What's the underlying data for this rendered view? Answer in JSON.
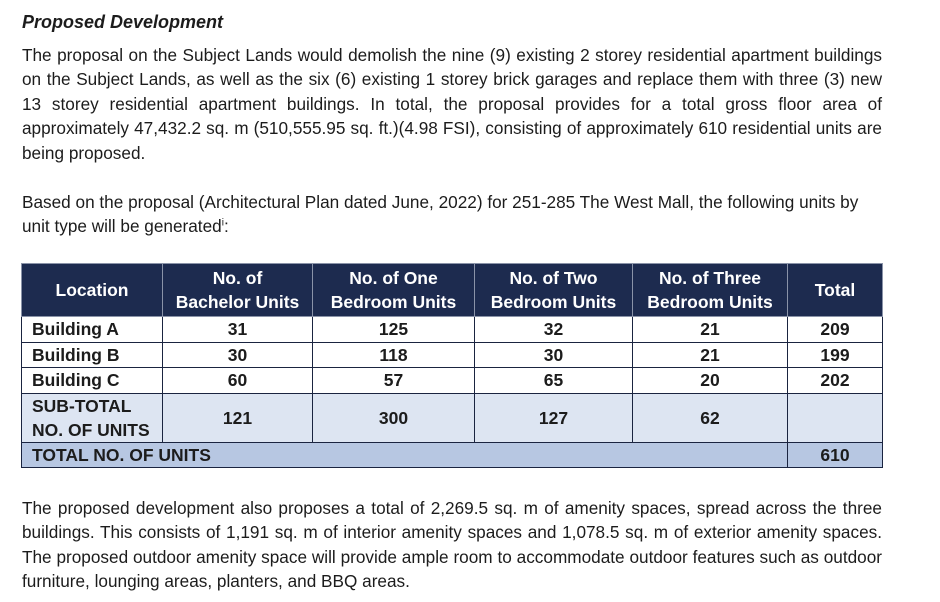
{
  "heading": "Proposed Development",
  "paragraph1": "The proposal on the Subject Lands would demolish the nine (9) existing 2 storey residential apartment buildings on the Subject Lands, as well as the six (6) existing 1 storey brick garages and replace them with three (3) new 13 storey residential apartment buildings. In total, the proposal provides for a total gross floor area of approximately 47,432.2 sq. m (510,555.95 sq. ft.)(4.98 FSI), consisting of approximately 610 residential units are being proposed.",
  "paragraph2": {
    "text": "Based on the proposal (Architectural Plan dated June, 2022) for 251-285 The West Mall, the following units by unit type will be generated",
    "footnote_marker": "i",
    "suffix": ":"
  },
  "table": {
    "headers": {
      "location": "Location",
      "bachelor_1": "No. of",
      "bachelor_2": "Bachelor Units",
      "one_1": "No. of One",
      "one_2": "Bedroom Units",
      "two_1": "No. of Two",
      "two_2": "Bedroom Units",
      "three_1": "No. of Three",
      "three_2": "Bedroom Units",
      "total": "Total"
    },
    "rows": [
      {
        "location": "Building A",
        "bachelor": "31",
        "one": "125",
        "two": "32",
        "three": "21",
        "total": "209"
      },
      {
        "location": "Building B",
        "bachelor": "30",
        "one": "118",
        "two": "30",
        "three": "21",
        "total": "199"
      },
      {
        "location": "Building C",
        "bachelor": "60",
        "one": "57",
        "two": "65",
        "three": "20",
        "total": "202"
      }
    ],
    "subtotal": {
      "label_1": "SUB-TOTAL",
      "label_2": "NO. OF UNITS",
      "bachelor": "121",
      "one": "300",
      "two": "127",
      "three": "62",
      "total": ""
    },
    "grand_total": {
      "label": "TOTAL NO. OF UNITS",
      "value": "610"
    },
    "colors": {
      "header_bg": "#1d2b4f",
      "subtotal_bg": "#dde5f2",
      "total_bg": "#b7c7e2"
    }
  },
  "paragraph3": "The proposed development also proposes a total of 2,269.5 sq. m of amenity spaces, spread across the three buildings. This consists of 1,191 sq. m of interior amenity spaces and 1,078.5 sq. m of exterior amenity spaces. The proposed outdoor amenity space will provide ample room to accommodate outdoor features such as outdoor furniture, lounging areas, planters, and BBQ areas."
}
